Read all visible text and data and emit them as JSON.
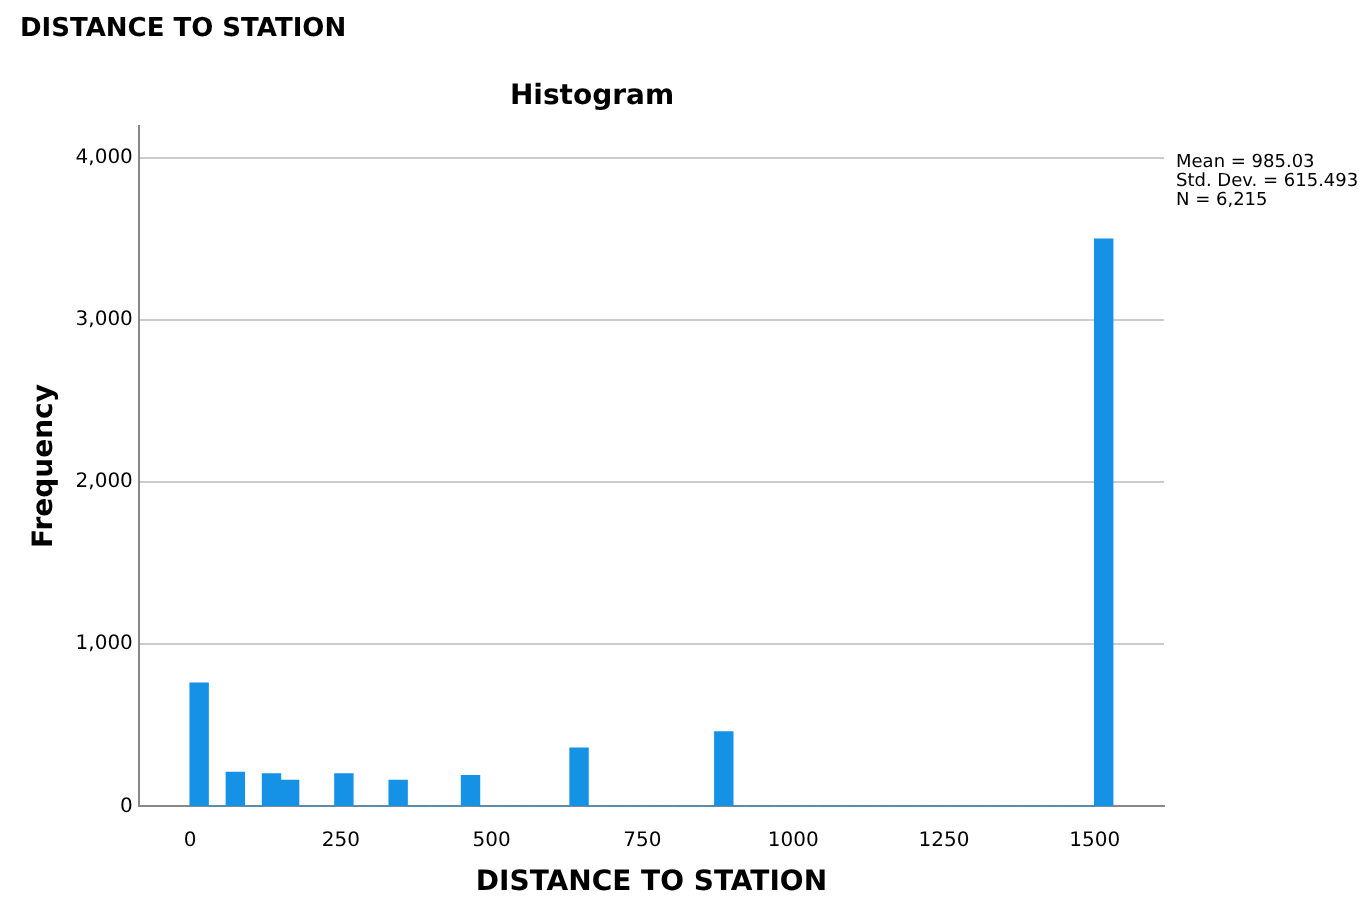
{
  "chart_data": {
    "type": "histogram",
    "title": "DISTANCE TO STATION",
    "subtitle": "Histogram",
    "xlabel": "DISTANCE TO STATION",
    "ylabel": "Frequency",
    "annotations": [
      "Mean = 985.03",
      "Std. Dev. = 615.493",
      "N = 6,215"
    ],
    "bins": [
      0,
      30,
      60,
      90,
      120,
      150,
      180,
      210,
      240,
      270,
      300,
      330,
      360,
      390,
      420,
      450,
      480,
      510,
      540,
      570,
      600,
      630,
      660,
      690,
      720,
      750,
      780,
      810,
      840,
      870,
      900,
      930,
      960,
      990,
      1020,
      1050,
      1080,
      1110,
      1140,
      1170,
      1200,
      1230,
      1260,
      1290,
      1320,
      1350,
      1380,
      1410,
      1440,
      1470,
      1500,
      1530
    ],
    "values": [
      760,
      0,
      210,
      0,
      200,
      160,
      0,
      0,
      200,
      0,
      0,
      160,
      0,
      0,
      0,
      190,
      0,
      0,
      0,
      0,
      0,
      360,
      0,
      0,
      0,
      0,
      0,
      0,
      0,
      460,
      0,
      0,
      0,
      0,
      0,
      0,
      0,
      0,
      0,
      0,
      0,
      0,
      0,
      0,
      0,
      0,
      0,
      0,
      0,
      0,
      3500
    ],
    "color": "#1592e6",
    "xlim": [
      -85,
      1615
    ],
    "xticks": [
      0,
      250,
      500,
      750,
      1000,
      1250,
      1500
    ],
    "ylim": [
      0,
      4200
    ],
    "yticks": [
      0,
      {
        "value": 1000,
        "label": "1,000"
      },
      {
        "value": 2000,
        "label": "2,000"
      },
      {
        "value": 3000,
        "label": "3,000"
      },
      {
        "value": 4000,
        "label": "4,000"
      }
    ],
    "grid": "y",
    "legend": false
  }
}
